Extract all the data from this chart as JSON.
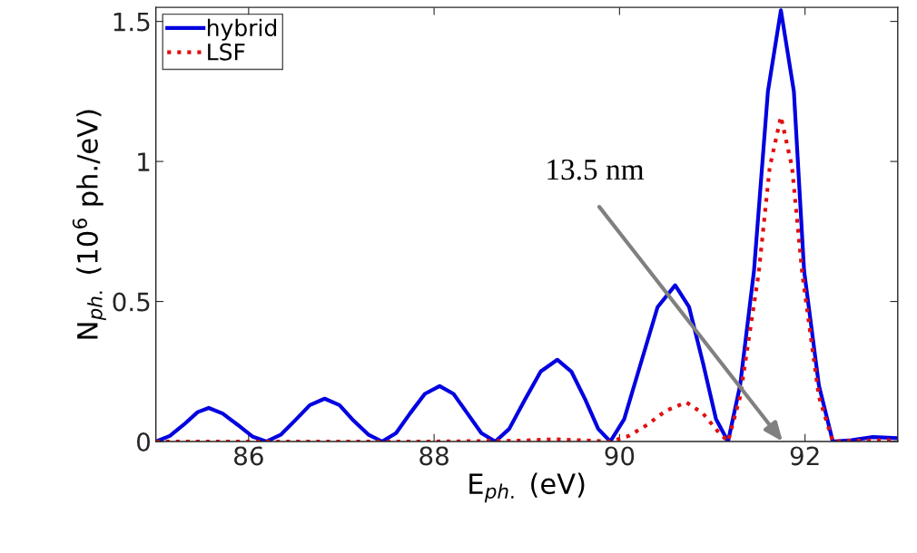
{
  "chart_data": {
    "type": "line",
    "xlabel": "E$_{ph.}$ (eV)",
    "ylabel": "N$_{ph.}$ (10$^{6}$ ph./eV)",
    "xlim": [
      85,
      93
    ],
    "xticks": [
      86,
      88,
      90,
      92
    ],
    "ylim": [
      0,
      1.55
    ],
    "yticks": [
      0,
      0.5,
      1,
      1.5
    ],
    "grid": false,
    "legend": "top left",
    "series": [
      {
        "name": "hybrid",
        "color": "#0000e0",
        "line_style": "solid",
        "x": [
          85.0,
          85.15,
          85.3,
          85.45,
          85.57,
          85.72,
          85.88,
          86.04,
          86.19,
          86.35,
          86.5,
          86.66,
          86.82,
          86.98,
          87.13,
          87.29,
          87.44,
          87.59,
          87.74,
          87.9,
          88.06,
          88.21,
          88.36,
          88.51,
          88.66,
          88.81,
          88.98,
          89.15,
          89.33,
          89.48,
          89.63,
          89.77,
          89.9,
          90.05,
          90.23,
          90.41,
          90.6,
          90.75,
          90.9,
          91.04,
          91.17,
          91.3,
          91.45,
          91.6,
          91.74,
          91.88,
          91.99,
          92.15,
          92.3,
          92.5,
          92.73,
          92.85,
          93.0
        ],
        "values": [
          0,
          0.02,
          0.06,
          0.105,
          0.12,
          0.1,
          0.06,
          0.018,
          0,
          0.025,
          0.075,
          0.13,
          0.153,
          0.13,
          0.075,
          0.025,
          0,
          0.03,
          0.1,
          0.17,
          0.198,
          0.17,
          0.1,
          0.03,
          0,
          0.045,
          0.15,
          0.25,
          0.292,
          0.25,
          0.15,
          0.045,
          0,
          0.08,
          0.28,
          0.48,
          0.558,
          0.48,
          0.28,
          0.08,
          0,
          0.2,
          0.61,
          1.25,
          1.54,
          1.25,
          0.61,
          0.2,
          0,
          0.005,
          0.016,
          0.014,
          0.012
        ]
      },
      {
        "name": "LSF",
        "color": "#e01010",
        "line_style": "dotted",
        "x": [
          85,
          86,
          87,
          88,
          88.9,
          89.3,
          89.7,
          89.9,
          90.1,
          90.3,
          90.5,
          90.72,
          90.9,
          91.05,
          91.17,
          91.3,
          91.5,
          91.62,
          91.74,
          91.86,
          91.97,
          92.15,
          92.3,
          92.5,
          93
        ],
        "values": [
          0,
          0,
          0,
          0,
          0.003,
          0.008,
          0.003,
          0,
          0.02,
          0.06,
          0.11,
          0.14,
          0.1,
          0.04,
          0,
          0.16,
          0.6,
          0.98,
          1.16,
          0.98,
          0.6,
          0.16,
          0,
          0.003,
          0.005
        ]
      }
    ],
    "annotations": [
      "13.5 nm"
    ]
  }
}
